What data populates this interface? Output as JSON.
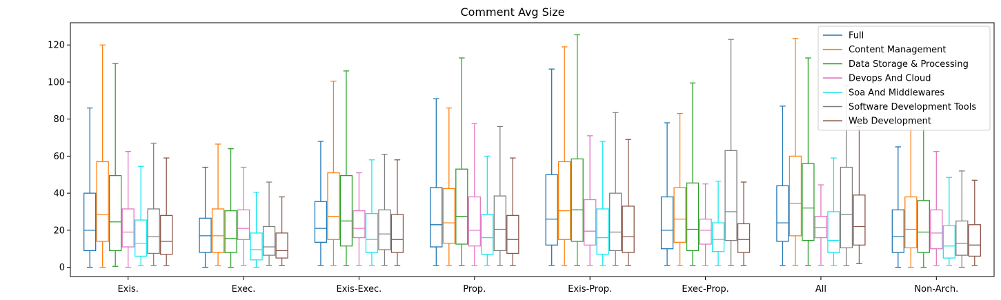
{
  "chart_data": {
    "type": "boxplot",
    "title": "Comment Avg Size",
    "xlabel": "",
    "ylabel": "",
    "categories": [
      "Exis.",
      "Exec.",
      "Exis-Exec.",
      "Prop.",
      "Exis-Prop.",
      "Exec-Prop.",
      "All",
      "Non-Arch."
    ],
    "ylim": [
      -5,
      132
    ],
    "yticks": [
      0,
      20,
      40,
      60,
      80,
      100,
      120
    ],
    "grid": false,
    "legend_position": "top-right",
    "series": [
      {
        "name": "Full",
        "color": "#1f77b4",
        "boxes": [
          {
            "min": 0,
            "q1": 9,
            "median": 20,
            "q3": 40,
            "max": 86
          },
          {
            "min": 0,
            "q1": 8,
            "median": 17,
            "q3": 26.5,
            "max": 54
          },
          {
            "min": 1,
            "q1": 13.5,
            "median": 21,
            "q3": 35.5,
            "max": 68
          },
          {
            "min": 1,
            "q1": 11,
            "median": 23,
            "q3": 43,
            "max": 91
          },
          {
            "min": 1,
            "q1": 12,
            "median": 26,
            "q3": 50,
            "max": 107
          },
          {
            "min": 1,
            "q1": 10,
            "median": 20,
            "q3": 38,
            "max": 78
          },
          {
            "min": 1,
            "q1": 14,
            "median": 24,
            "q3": 44,
            "max": 87
          },
          {
            "min": 0,
            "q1": 8,
            "median": 16.5,
            "q3": 31,
            "max": 65
          }
        ]
      },
      {
        "name": "Content Management",
        "color": "#ff7f0e",
        "boxes": [
          {
            "min": 0,
            "q1": 14,
            "median": 28.5,
            "q3": 57,
            "max": 120
          },
          {
            "min": 1,
            "q1": 8,
            "median": 17,
            "q3": 31.5,
            "max": 66.5
          },
          {
            "min": 1,
            "q1": 15,
            "median": 27.5,
            "q3": 51,
            "max": 100.5
          },
          {
            "min": 1,
            "q1": 13,
            "median": 24,
            "q3": 42.5,
            "max": 86
          },
          {
            "min": 1,
            "q1": 15,
            "median": 30.5,
            "q3": 57,
            "max": 119
          },
          {
            "min": 1,
            "q1": 13.5,
            "median": 26,
            "q3": 43,
            "max": 83
          },
          {
            "min": 1,
            "q1": 17,
            "median": 34.5,
            "q3": 60,
            "max": 123.5
          },
          {
            "min": 0,
            "q1": 10.5,
            "median": 20.5,
            "q3": 38,
            "max": 80
          }
        ]
      },
      {
        "name": "Data Storage & Processing",
        "color": "#2ca02c",
        "boxes": [
          {
            "min": 0.5,
            "q1": 9,
            "median": 24.5,
            "q3": 49.5,
            "max": 110
          },
          {
            "min": 0,
            "q1": 8,
            "median": 15.5,
            "q3": 30.5,
            "max": 64
          },
          {
            "min": 1,
            "q1": 11.5,
            "median": 25,
            "q3": 49.5,
            "max": 106
          },
          {
            "min": 1,
            "q1": 12.5,
            "median": 27.5,
            "q3": 53,
            "max": 113
          },
          {
            "min": 1,
            "q1": 14,
            "median": 31,
            "q3": 58.5,
            "max": 125.5
          },
          {
            "min": 1,
            "q1": 9,
            "median": 20.5,
            "q3": 45.5,
            "max": 99.5
          },
          {
            "min": 1,
            "q1": 14.5,
            "median": 32,
            "q3": 56,
            "max": 113
          },
          {
            "min": 0,
            "q1": 8,
            "median": 19,
            "q3": 36,
            "max": 78
          }
        ]
      },
      {
        "name": "Devops And Cloud",
        "color": "#e377c2",
        "boxes": [
          {
            "min": 0,
            "q1": 11,
            "median": 19,
            "q3": 31.5,
            "max": 62.5
          },
          {
            "min": 1,
            "q1": 15,
            "median": 21,
            "q3": 31,
            "max": 54
          },
          {
            "min": 1,
            "q1": 16,
            "median": 21,
            "q3": 30.5,
            "max": 51
          },
          {
            "min": 1,
            "q1": 11.5,
            "median": 20,
            "q3": 38,
            "max": 77.5
          },
          {
            "min": 1,
            "q1": 12,
            "median": 19.5,
            "q3": 36.5,
            "max": 71
          },
          {
            "min": 1,
            "q1": 12.5,
            "median": 20,
            "q3": 26,
            "max": 45
          },
          {
            "min": 1,
            "q1": 16,
            "median": 21.5,
            "q3": 27.5,
            "max": 44.5
          },
          {
            "min": 1,
            "q1": 10,
            "median": 18.5,
            "q3": 31,
            "max": 62.5
          }
        ]
      },
      {
        "name": "Soa And Middlewares",
        "color": "#17e6f0",
        "boxes": [
          {
            "min": 1,
            "q1": 6,
            "median": 13,
            "q3": 25.5,
            "max": 54.5
          },
          {
            "min": 0,
            "q1": 4,
            "median": 9.5,
            "q3": 18.5,
            "max": 40.5
          },
          {
            "min": 1,
            "q1": 8,
            "median": 15,
            "q3": 29,
            "max": 58
          },
          {
            "min": 1,
            "q1": 7,
            "median": 16,
            "q3": 28.5,
            "max": 60
          },
          {
            "min": 1,
            "q1": 7,
            "median": 16,
            "q3": 31.5,
            "max": 68
          },
          {
            "min": 1,
            "q1": 8.5,
            "median": 15,
            "q3": 24,
            "max": 46.5
          },
          {
            "min": 1,
            "q1": 8,
            "median": 14.5,
            "q3": 30,
            "max": 59
          },
          {
            "min": 1,
            "q1": 5,
            "median": 11.5,
            "q3": 22.5,
            "max": 48.5
          }
        ]
      },
      {
        "name": "Software Development Tools",
        "color": "#7f7f7f",
        "boxes": [
          {
            "min": 1,
            "q1": 7.5,
            "median": 16.5,
            "q3": 31.5,
            "max": 67
          },
          {
            "min": 1,
            "q1": 6.5,
            "median": 11,
            "q3": 22,
            "max": 46
          },
          {
            "min": 1,
            "q1": 9.5,
            "median": 18,
            "q3": 31,
            "max": 61
          },
          {
            "min": 1,
            "q1": 9,
            "median": 20.5,
            "q3": 38.5,
            "max": 76
          },
          {
            "min": 1,
            "q1": 9,
            "median": 19,
            "q3": 40,
            "max": 83.5
          },
          {
            "min": 1,
            "q1": 14.5,
            "median": 30,
            "q3": 63,
            "max": 123
          },
          {
            "min": 1,
            "q1": 10.5,
            "median": 28.5,
            "q3": 54,
            "max": 98
          },
          {
            "min": 0,
            "q1": 6.5,
            "median": 13,
            "q3": 25,
            "max": 52
          }
        ]
      },
      {
        "name": "Web Development",
        "color": "#8c564b",
        "boxes": [
          {
            "min": 1,
            "q1": 7,
            "median": 14,
            "q3": 28,
            "max": 59
          },
          {
            "min": 1,
            "q1": 5,
            "median": 9,
            "q3": 18.5,
            "max": 38
          },
          {
            "min": 1,
            "q1": 8,
            "median": 15,
            "q3": 28.5,
            "max": 58
          },
          {
            "min": 1,
            "q1": 7.5,
            "median": 15,
            "q3": 28,
            "max": 59
          },
          {
            "min": 1,
            "q1": 8,
            "median": 16.5,
            "q3": 33,
            "max": 69
          },
          {
            "min": 1,
            "q1": 8,
            "median": 15,
            "q3": 23.5,
            "max": 46
          },
          {
            "min": 2,
            "q1": 12,
            "median": 22,
            "q3": 39,
            "max": 76
          },
          {
            "min": 1,
            "q1": 6,
            "median": 12,
            "q3": 23,
            "max": 47
          }
        ]
      }
    ]
  }
}
